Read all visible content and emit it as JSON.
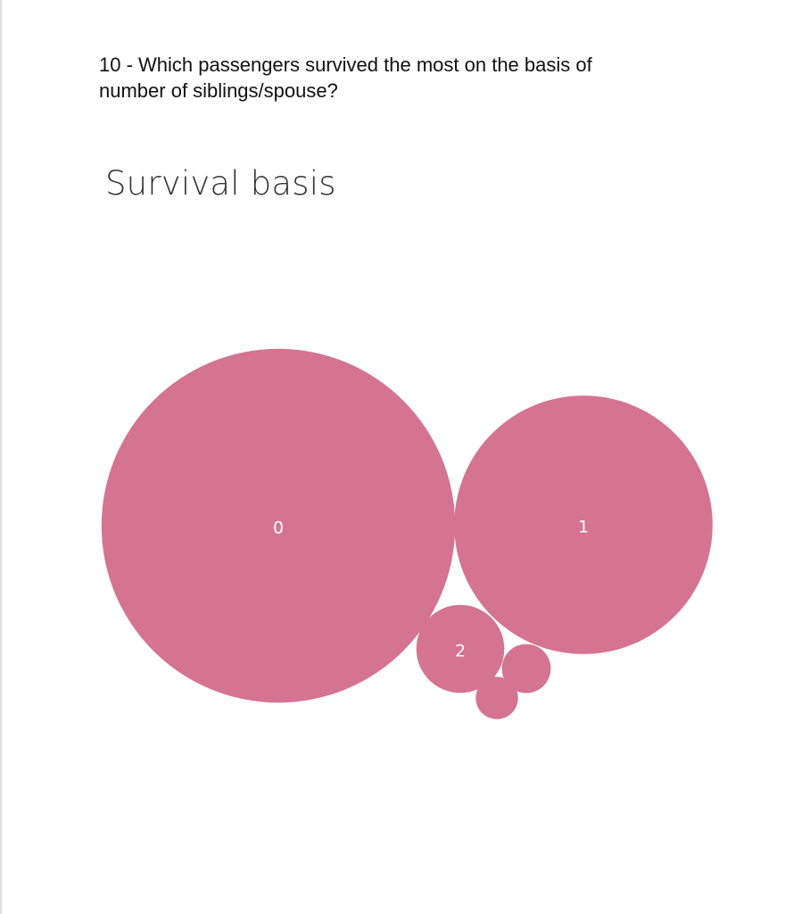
{
  "question": {
    "line1": "10 - Which passengers survived the most on the basis of",
    "line2": "number of siblings/spouse?"
  },
  "chart_data": {
    "type": "bubble",
    "title": "Survival basis",
    "color": "#d47392",
    "label_color": "#ffffff",
    "series": [
      {
        "label": "0",
        "value": 210,
        "show_label": true
      },
      {
        "label": "1",
        "value": 112,
        "show_label": true
      },
      {
        "label": "2",
        "value": 13,
        "show_label": true
      },
      {
        "label": "3",
        "value": 4,
        "show_label": false
      },
      {
        "label": "4",
        "value": 3,
        "show_label": false
      }
    ]
  }
}
